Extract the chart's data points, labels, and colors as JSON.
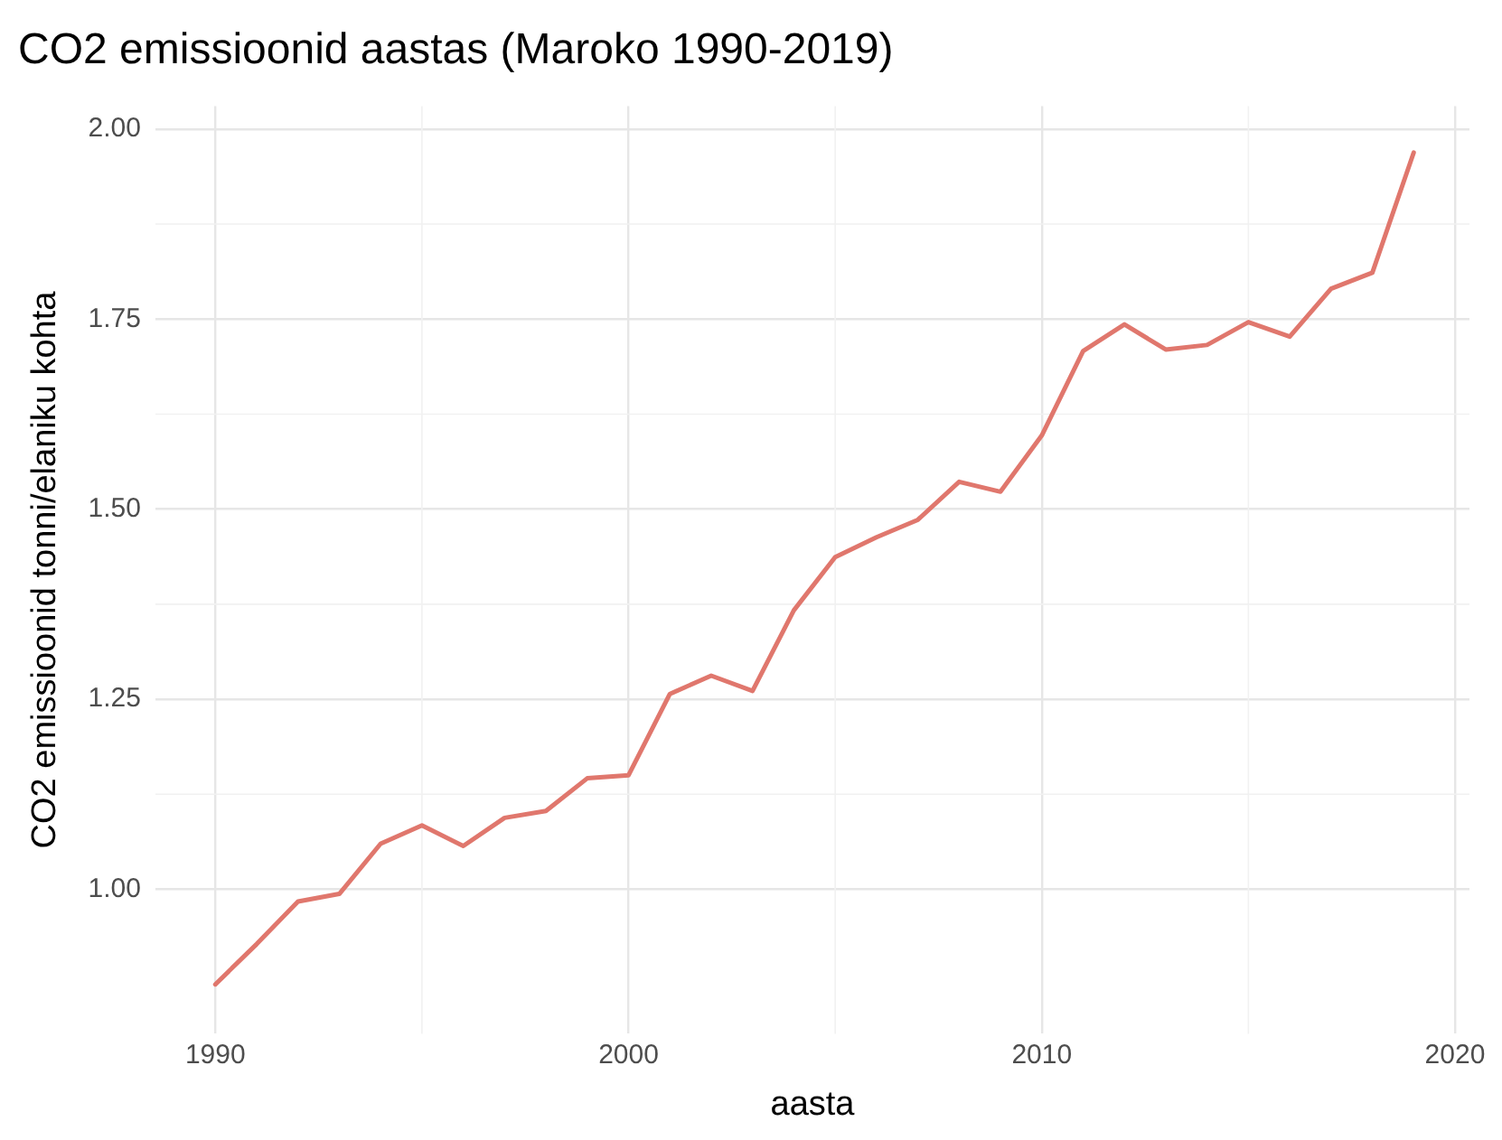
{
  "chart_data": {
    "type": "line",
    "title": "CO2 emissioonid aastas (Maroko 1990-2019)",
    "xlabel": "aasta",
    "ylabel": "CO2 emissioonid tonni/elaniku kohta",
    "x": [
      1990,
      1991,
      1992,
      1993,
      1994,
      1995,
      1996,
      1997,
      1998,
      1999,
      2000,
      2001,
      2002,
      2003,
      2004,
      2005,
      2006,
      2007,
      2008,
      2009,
      2010,
      2011,
      2012,
      2013,
      2014,
      2015,
      2016,
      2017,
      2018,
      2019
    ],
    "series": [
      {
        "color": "#e0776d",
        "values": [
          0.875,
          0.928,
          0.984,
          0.994,
          1.06,
          1.084,
          1.057,
          1.094,
          1.103,
          1.146,
          1.15,
          1.257,
          1.281,
          1.261,
          1.367,
          1.437,
          1.463,
          1.486,
          1.536,
          1.523,
          1.597,
          1.708,
          1.743,
          1.71,
          1.716,
          1.746,
          1.727,
          1.79,
          1.811,
          1.969
        ]
      }
    ],
    "xlim": [
      1988.55,
      2020.35
    ],
    "ylim": [
      0.81,
      2.03
    ],
    "xticks": [
      1990,
      2000,
      2010,
      2020
    ],
    "yticks": [
      {
        "value": 1,
        "label": "1.00"
      },
      {
        "value": 1.25,
        "label": "1.25"
      },
      {
        "value": 1.5,
        "label": "1.50"
      },
      {
        "value": 1.75,
        "label": "1.75"
      },
      {
        "value": 2,
        "label": "2.00"
      }
    ],
    "grid": true,
    "legend": false,
    "marker": "none",
    "line_style": "solid"
  }
}
